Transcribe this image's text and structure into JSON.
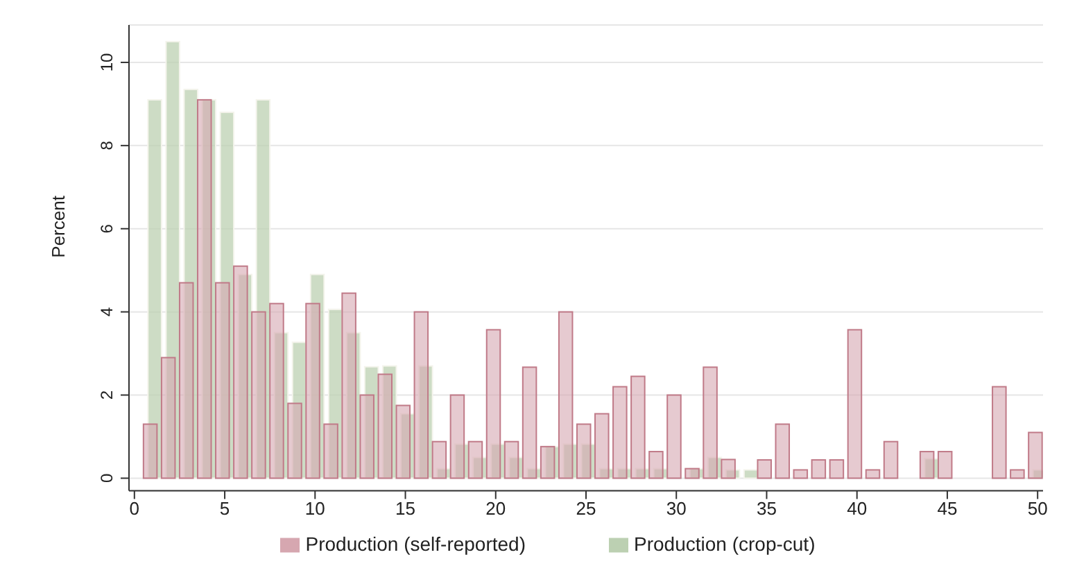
{
  "chart_data": {
    "type": "histogram",
    "ylabel": "Percent",
    "bins": [
      0.5,
      1.5,
      2.5,
      3.5,
      4.5,
      5.5,
      6.5,
      7.5,
      8.5,
      9.5,
      10.5,
      11.5,
      12.5,
      13.5,
      14.5,
      15.5,
      16.5,
      17.5,
      18.5,
      19.5,
      20.5,
      21.5,
      22.5,
      23.5,
      24.5,
      25.5,
      26.5,
      27.5,
      28.5,
      29.5,
      30.5,
      31.5,
      32.5,
      33.5,
      34.5,
      35.5,
      36.5,
      37.5,
      38.5,
      39.5,
      40.5,
      41.5,
      42.5,
      43.5,
      44.5,
      45.5,
      46.5,
      47.5,
      48.5,
      49.5,
      50.5
    ],
    "series": [
      {
        "name": "Production (self-reported)",
        "color": "#d6a7b0",
        "values": [
          1.3,
          2.9,
          4.7,
          9.1,
          4.7,
          5.1,
          4.0,
          4.2,
          1.8,
          4.2,
          1.3,
          4.45,
          2.0,
          2.5,
          1.75,
          4.0,
          0.88,
          2.0,
          0.88,
          3.57,
          0.88,
          2.67,
          0.76,
          4.0,
          1.3,
          1.55,
          2.2,
          2.45,
          0.64,
          2.0,
          0.23,
          2.67,
          0.45,
          0,
          0.44,
          1.3,
          0.2,
          0.44,
          0.44,
          3.57,
          0.2,
          0.88,
          0,
          0.64,
          0.64,
          0,
          0,
          2.2,
          0.2,
          1.1
        ]
      },
      {
        "name": "Production (crop-cut)",
        "color": "#bcd0b2",
        "values": [
          9.1,
          10.5,
          9.35,
          9.1,
          8.8,
          4.9,
          9.1,
          3.5,
          3.27,
          4.9,
          4.06,
          3.5,
          2.68,
          2.7,
          1.55,
          2.7,
          0.23,
          0.82,
          0.5,
          0.82,
          0.5,
          0.23,
          0.76,
          0.82,
          0.82,
          0.23,
          0.23,
          0.23,
          0.23,
          0,
          0.23,
          0.5,
          0.2,
          0.2,
          0,
          0,
          0,
          0,
          0,
          0,
          0,
          0,
          0,
          0.47,
          0,
          0,
          0,
          0,
          0,
          0.2
        ]
      }
    ],
    "xlim": [
      -0.3,
      50.3
    ],
    "xticks": [
      0,
      5,
      10,
      15,
      20,
      25,
      30,
      35,
      40,
      45,
      50
    ],
    "ylim": [
      -0.3,
      10.9
    ],
    "yticks": [
      0,
      2,
      4,
      6,
      8,
      10
    ],
    "grid": "y",
    "legend": "bottom"
  }
}
